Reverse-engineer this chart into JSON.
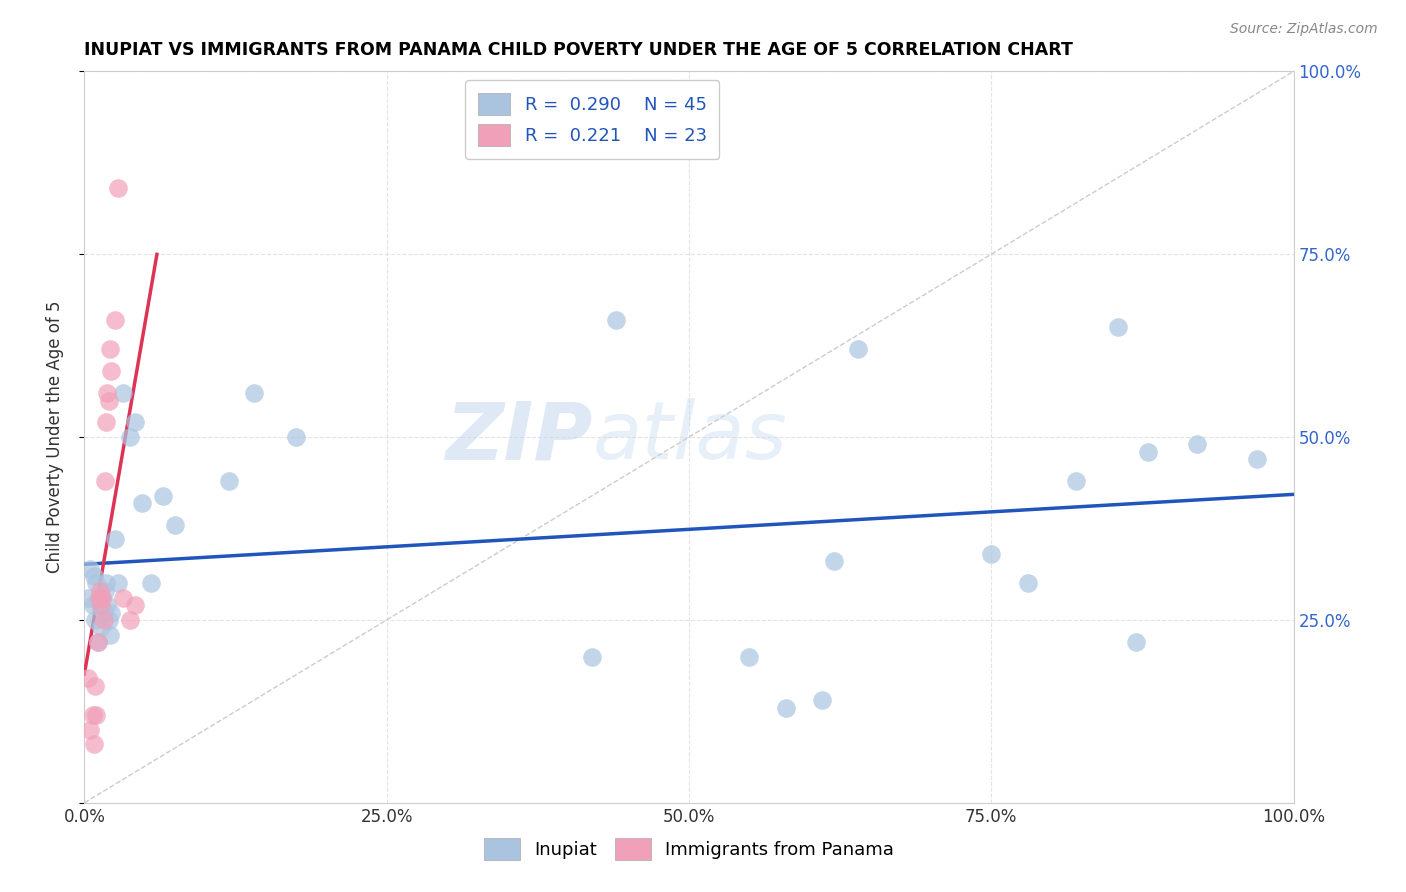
{
  "title": "INUPIAT VS IMMIGRANTS FROM PANAMA CHILD POVERTY UNDER THE AGE OF 5 CORRELATION CHART",
  "source": "Source: ZipAtlas.com",
  "ylabel": "Child Poverty Under the Age of 5",
  "xlim": [
    0,
    1
  ],
  "ylim": [
    0,
    1
  ],
  "x_tick_positions": [
    0,
    0.25,
    0.5,
    0.75,
    1.0
  ],
  "x_tick_labels": [
    "0.0%",
    "25.0%",
    "50.0%",
    "75.0%",
    "100.0%"
  ],
  "y_tick_positions": [
    0,
    0.25,
    0.5,
    0.75,
    1.0
  ],
  "right_tick_labels": [
    "",
    "25.0%",
    "50.0%",
    "75.0%",
    "100.0%"
  ],
  "inupiat_color": "#aac4e0",
  "panama_color": "#f0a0b8",
  "inupiat_edge_color": "#88aacc",
  "panama_edge_color": "#d08098",
  "inupiat_line_color": "#2255bb",
  "panama_line_color": "#dd3355",
  "diagonal_color": "#cccccc",
  "R_inupiat": 0.29,
  "N_inupiat": 45,
  "R_panama": 0.221,
  "N_panama": 23,
  "watermark_zip": "ZIP",
  "watermark_atlas": "atlas",
  "inupiat_x": [
    0.003,
    0.005,
    0.007,
    0.008,
    0.009,
    0.01,
    0.011,
    0.012,
    0.013,
    0.014,
    0.015,
    0.016,
    0.017,
    0.018,
    0.019,
    0.02,
    0.021,
    0.022,
    0.025,
    0.028,
    0.032,
    0.038,
    0.042,
    0.048,
    0.055,
    0.065,
    0.075,
    0.12,
    0.14,
    0.175,
    0.42,
    0.44,
    0.55,
    0.58,
    0.61,
    0.62,
    0.64,
    0.75,
    0.78,
    0.82,
    0.855,
    0.87,
    0.88,
    0.92,
    0.97
  ],
  "inupiat_y": [
    0.28,
    0.32,
    0.27,
    0.31,
    0.25,
    0.3,
    0.22,
    0.28,
    0.27,
    0.24,
    0.28,
    0.26,
    0.29,
    0.3,
    0.27,
    0.25,
    0.23,
    0.26,
    0.36,
    0.3,
    0.56,
    0.5,
    0.52,
    0.41,
    0.3,
    0.42,
    0.38,
    0.44,
    0.56,
    0.5,
    0.2,
    0.66,
    0.2,
    0.13,
    0.14,
    0.33,
    0.62,
    0.34,
    0.3,
    0.44,
    0.65,
    0.22,
    0.48,
    0.49,
    0.47
  ],
  "panama_x": [
    0.003,
    0.005,
    0.007,
    0.008,
    0.009,
    0.01,
    0.011,
    0.012,
    0.013,
    0.014,
    0.015,
    0.016,
    0.017,
    0.018,
    0.019,
    0.02,
    0.021,
    0.022,
    0.025,
    0.028,
    0.032,
    0.038,
    0.042
  ],
  "panama_y": [
    0.17,
    0.1,
    0.12,
    0.08,
    0.16,
    0.12,
    0.22,
    0.28,
    0.29,
    0.27,
    0.28,
    0.25,
    0.44,
    0.52,
    0.56,
    0.55,
    0.62,
    0.59,
    0.66,
    0.84,
    0.28,
    0.25,
    0.27
  ]
}
